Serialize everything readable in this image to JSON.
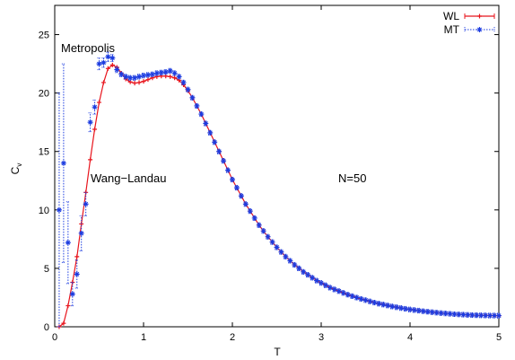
{
  "chart_data": {
    "type": "line",
    "xlabel": "T",
    "ylabel": "C",
    "ylabel_sub": "v",
    "xlim": [
      0,
      5
    ],
    "ylim": [
      0,
      27.5
    ],
    "xticks": [
      0,
      1,
      2,
      3,
      4,
      5
    ],
    "yticks": [
      0,
      5,
      10,
      15,
      20,
      25
    ],
    "grid": false,
    "legend_position": "top-right",
    "annotations": [
      "Metropolis",
      "Wang−Landau",
      "N=50"
    ],
    "series": [
      {
        "name": "WL",
        "color": "#e8141c",
        "style": "solid line with + markers and vertical error bars",
        "x": [
          0.05,
          0.1,
          0.15,
          0.2,
          0.25,
          0.3,
          0.35,
          0.4,
          0.45,
          0.5,
          0.55,
          0.6,
          0.65,
          0.7,
          0.75,
          0.8,
          0.85,
          0.9,
          0.95,
          1.0,
          1.05,
          1.1,
          1.15,
          1.2,
          1.25,
          1.3,
          1.35,
          1.4,
          1.45,
          1.5,
          1.55,
          1.6,
          1.65,
          1.7,
          1.75,
          1.8,
          1.85,
          1.9,
          1.95,
          2.0,
          2.05,
          2.1,
          2.15,
          2.2,
          2.25,
          2.3,
          2.35,
          2.4,
          2.45,
          2.5,
          2.55,
          2.6,
          2.65,
          2.7,
          2.75,
          2.8,
          2.85,
          2.9,
          2.95,
          3.0,
          3.05,
          3.1,
          3.15,
          3.2,
          3.25,
          3.3,
          3.35,
          3.4,
          3.45,
          3.5,
          3.55,
          3.6,
          3.65,
          3.7,
          3.75,
          3.8,
          3.85,
          3.9,
          3.95,
          4.0,
          4.05,
          4.1,
          4.15,
          4.2,
          4.25,
          4.3,
          4.35,
          4.4,
          4.45,
          4.5,
          4.55,
          4.6,
          4.65,
          4.7,
          4.75,
          4.8,
          4.85,
          4.9,
          4.95,
          5.0
        ],
        "y": [
          0.0,
          0.3,
          1.8,
          3.8,
          6.0,
          8.8,
          11.5,
          14.3,
          16.9,
          19.2,
          20.9,
          22.1,
          22.4,
          22.2,
          21.7,
          21.2,
          20.95,
          20.85,
          20.9,
          21.0,
          21.15,
          21.3,
          21.4,
          21.45,
          21.45,
          21.4,
          21.3,
          21.1,
          20.7,
          20.2,
          19.6,
          18.9,
          18.2,
          17.4,
          16.6,
          15.8,
          15.0,
          14.2,
          13.4,
          12.6,
          11.9,
          11.2,
          10.5,
          9.9,
          9.3,
          8.7,
          8.2,
          7.7,
          7.25,
          6.8,
          6.4,
          6.0,
          5.65,
          5.3,
          5.0,
          4.7,
          4.45,
          4.2,
          3.95,
          3.75,
          3.55,
          3.35,
          3.2,
          3.05,
          2.9,
          2.75,
          2.62,
          2.5,
          2.38,
          2.28,
          2.17,
          2.07,
          1.98,
          1.9,
          1.82,
          1.74,
          1.67,
          1.6,
          1.54,
          1.48,
          1.43,
          1.38,
          1.33,
          1.29,
          1.25,
          1.21,
          1.17,
          1.14,
          1.11,
          1.08,
          1.06,
          1.04,
          1.02,
          1.0,
          0.99,
          0.98,
          0.97,
          0.96,
          0.96,
          0.95
        ]
      },
      {
        "name": "MT",
        "color": "#1c3ce0",
        "style": "* markers with dotted vertical error bars",
        "x": [
          0.05,
          0.1,
          0.15,
          0.2,
          0.25,
          0.3,
          0.35,
          0.4,
          0.45,
          0.5,
          0.55,
          0.6,
          0.65,
          0.7,
          0.75,
          0.8,
          0.85,
          0.9,
          0.95,
          1.0,
          1.05,
          1.1,
          1.15,
          1.2,
          1.25,
          1.3,
          1.35,
          1.4,
          1.45,
          1.5,
          1.55,
          1.6,
          1.65,
          1.7,
          1.75,
          1.8,
          1.85,
          1.9,
          1.95,
          2.0,
          2.05,
          2.1,
          2.15,
          2.2,
          2.25,
          2.3,
          2.35,
          2.4,
          2.45,
          2.5,
          2.55,
          2.6,
          2.65,
          2.7,
          2.75,
          2.8,
          2.85,
          2.9,
          2.95,
          3.0,
          3.05,
          3.1,
          3.15,
          3.2,
          3.25,
          3.3,
          3.35,
          3.4,
          3.45,
          3.5,
          3.55,
          3.6,
          3.65,
          3.7,
          3.75,
          3.8,
          3.85,
          3.9,
          3.95,
          4.0,
          4.05,
          4.1,
          4.15,
          4.2,
          4.25,
          4.3,
          4.35,
          4.4,
          4.45,
          4.5,
          4.55,
          4.6,
          4.65,
          4.7,
          4.75,
          4.8,
          4.85,
          4.9,
          4.95,
          5.0
        ],
        "y": [
          10.0,
          14.0,
          7.2,
          2.8,
          4.5,
          8.0,
          10.5,
          17.5,
          18.8,
          22.5,
          22.6,
          23.1,
          23.0,
          22.0,
          21.6,
          21.4,
          21.3,
          21.3,
          21.4,
          21.5,
          21.55,
          21.6,
          21.7,
          21.75,
          21.8,
          21.9,
          21.7,
          21.4,
          20.9,
          20.3,
          19.6,
          18.9,
          18.2,
          17.4,
          16.6,
          15.8,
          15.0,
          14.2,
          13.4,
          12.6,
          11.9,
          11.2,
          10.5,
          9.9,
          9.3,
          8.7,
          8.2,
          7.7,
          7.25,
          6.8,
          6.4,
          6.0,
          5.65,
          5.3,
          5.0,
          4.7,
          4.45,
          4.2,
          3.95,
          3.75,
          3.55,
          3.35,
          3.2,
          3.05,
          2.9,
          2.75,
          2.62,
          2.5,
          2.38,
          2.28,
          2.17,
          2.07,
          1.98,
          1.9,
          1.82,
          1.74,
          1.67,
          1.6,
          1.54,
          1.48,
          1.43,
          1.38,
          1.33,
          1.29,
          1.25,
          1.21,
          1.17,
          1.14,
          1.11,
          1.08,
          1.06,
          1.04,
          1.02,
          1.0,
          0.99,
          0.98,
          0.97,
          0.96,
          0.96,
          0.95
        ],
        "err": [
          10.0,
          8.5,
          3.5,
          1.0,
          1.2,
          1.5,
          1.0,
          0.8,
          0.6,
          0.5,
          0.4,
          0.4,
          0.3,
          0.25,
          0.2,
          0.2,
          0.2,
          0.2,
          0.2,
          0.2,
          0.2,
          0.2,
          0.2,
          0.2,
          0.2,
          0.2,
          0.2,
          0.2,
          0.2,
          0.2,
          0.2,
          0.2,
          0.2,
          0.2,
          0.2,
          0.2,
          0.2,
          0.2,
          0.2,
          0.2,
          0.2,
          0.2,
          0.2,
          0.2,
          0.2,
          0.2,
          0.2,
          0.2,
          0.2,
          0.2,
          0.2,
          0.2,
          0.2,
          0.2,
          0.2,
          0.2,
          0.2,
          0.2,
          0.2,
          0.2,
          0.2,
          0.2,
          0.2,
          0.2,
          0.2,
          0.2,
          0.2,
          0.2,
          0.2,
          0.2,
          0.2,
          0.2,
          0.2,
          0.2,
          0.2,
          0.2,
          0.2,
          0.2,
          0.2,
          0.2,
          0.2,
          0.2,
          0.2,
          0.2,
          0.2,
          0.2,
          0.2,
          0.2,
          0.2,
          0.2,
          0.2,
          0.2,
          0.2,
          0.2,
          0.2,
          0.2,
          0.2,
          0.2,
          0.2,
          0.2
        ]
      }
    ]
  }
}
